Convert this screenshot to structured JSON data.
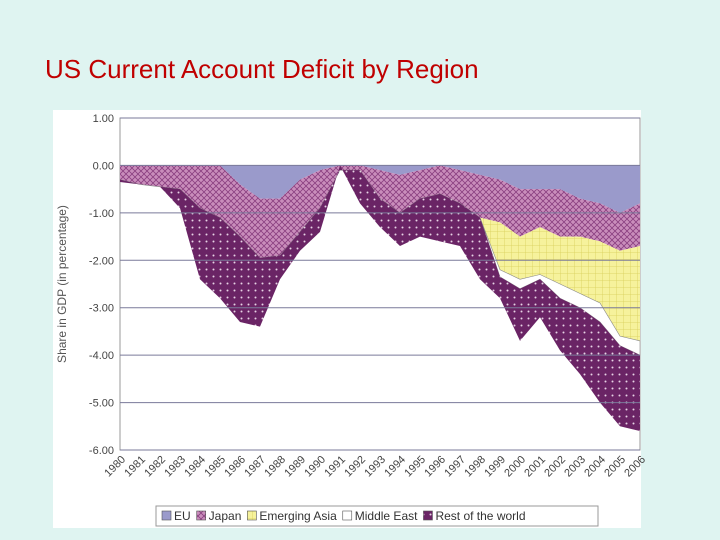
{
  "chart_data": {
    "type": "stacked_area",
    "title": "US Current Account Deficit by Region",
    "y_label": "Share in GDP (in percentage)",
    "categories": [
      "1980",
      "1981",
      "1982",
      "1983",
      "1984",
      "1985",
      "1986",
      "1987",
      "1988",
      "1989",
      "1990",
      "1991",
      "1992",
      "1993",
      "1994",
      "1995",
      "1996",
      "1997",
      "1998",
      "1999",
      "2000",
      "2001",
      "2002",
      "2003",
      "2004",
      "2005",
      "2006"
    ],
    "series": [
      {
        "name": "EU",
        "color": "#9a9acb",
        "values": [
          0,
          0,
          0,
          0,
          0,
          0,
          -0.4,
          -0.7,
          -0.7,
          -0.3,
          -0.1,
          0,
          0,
          -0.1,
          -0.2,
          -0.1,
          0,
          -0.1,
          -0.2,
          -0.3,
          -0.5,
          -0.5,
          -0.5,
          -0.7,
          -0.8,
          -1.0,
          -0.8
        ]
      },
      {
        "name": "Japan",
        "color": "#c98dbb",
        "values": [
          -0.3,
          -0.4,
          -0.45,
          -0.5,
          -0.9,
          -1.1,
          -1.1,
          -1.25,
          -1.2,
          -1.1,
          -0.8,
          -0.1,
          -0.1,
          -0.6,
          -0.8,
          -0.6,
          -0.6,
          -0.7,
          -0.9,
          -0.9,
          -1.0,
          -0.8,
          -1.0,
          -0.8,
          -0.8,
          -0.8,
          -0.9
        ]
      },
      {
        "name": "Emerging Asia",
        "color": "#f6f29c",
        "values": [
          0,
          0,
          0,
          0,
          0,
          0,
          0,
          0,
          0,
          0,
          0,
          0,
          0,
          0,
          0,
          0,
          0,
          0,
          0,
          -1.0,
          -0.9,
          -1.0,
          -1.0,
          -1.2,
          -1.3,
          -1.8,
          -2.0
        ]
      },
      {
        "name": "Middle East",
        "color": "#ffffff",
        "values": [
          0,
          0,
          0,
          0,
          0,
          0,
          0,
          0,
          0,
          0,
          0,
          0,
          0,
          0,
          0,
          0,
          0,
          0,
          0,
          -0.15,
          -0.2,
          -0.1,
          -0.3,
          -0.3,
          -0.4,
          -0.2,
          -0.3
        ]
      },
      {
        "name": "Rest of the world",
        "color": "#6a2465",
        "values": [
          -0.05,
          0,
          0,
          -0.4,
          -1.5,
          -1.7,
          -1.8,
          -1.45,
          -0.5,
          -0.4,
          -0.5,
          0.1,
          -0.7,
          -0.6,
          -0.7,
          -0.8,
          -1.0,
          -0.9,
          -1.3,
          -0.45,
          -1.1,
          -0.8,
          -1.1,
          -1.4,
          -1.7,
          -1.7,
          -1.6
        ]
      }
    ],
    "ylim": [
      -6,
      1
    ],
    "yticks": [
      {
        "value": 1,
        "label": "1.00"
      },
      {
        "value": 0,
        "label": "0.00"
      },
      {
        "value": -1,
        "label": "-1.00"
      },
      {
        "value": -2,
        "label": "-2.00"
      },
      {
        "value": -3,
        "label": "-3.00"
      },
      {
        "value": -4,
        "label": "-4.00"
      },
      {
        "value": -5,
        "label": "-5.00"
      },
      {
        "value": -6,
        "label": "-6.00"
      }
    ],
    "grid": true,
    "legend": "bottom"
  }
}
